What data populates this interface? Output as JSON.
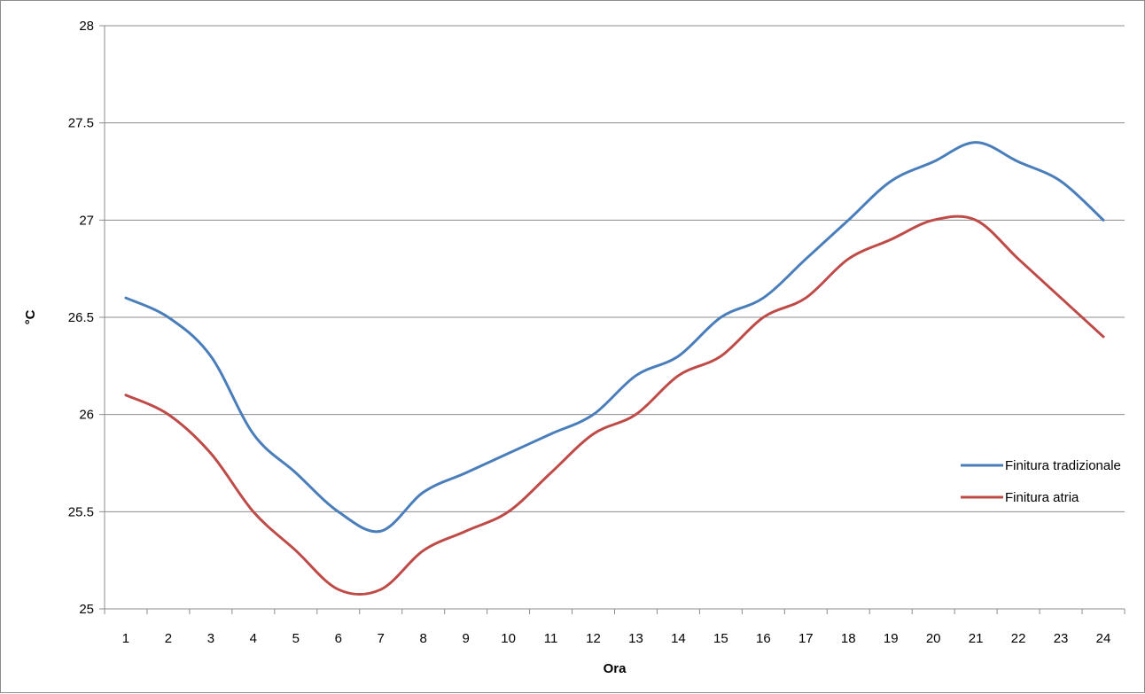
{
  "chart_data": {
    "type": "line",
    "title": "",
    "xlabel": "Ora",
    "ylabel": "°C",
    "x": [
      1,
      2,
      3,
      4,
      5,
      6,
      7,
      8,
      9,
      10,
      11,
      12,
      13,
      14,
      15,
      16,
      17,
      18,
      19,
      20,
      21,
      22,
      23,
      24
    ],
    "ylim": [
      25,
      28
    ],
    "yticks": [
      "25",
      "25.5",
      "26",
      "26.5",
      "27",
      "27.5",
      "28"
    ],
    "xticks": [
      "1",
      "2",
      "3",
      "4",
      "5",
      "6",
      "7",
      "8",
      "9",
      "10",
      "11",
      "12",
      "13",
      "14",
      "15",
      "16",
      "17",
      "18",
      "19",
      "20",
      "21",
      "22",
      "23",
      "24"
    ],
    "grid": true,
    "smooth": true,
    "legend_position": "right",
    "series": [
      {
        "name": "Finitura tradizionale",
        "color": "#4a7ebb",
        "values": [
          26.6,
          26.5,
          26.3,
          25.9,
          25.7,
          25.5,
          25.4,
          25.6,
          25.7,
          25.8,
          25.9,
          26.0,
          26.2,
          26.3,
          26.5,
          26.6,
          26.8,
          27.0,
          27.2,
          27.3,
          27.4,
          27.3,
          27.2,
          27.0
        ]
      },
      {
        "name": "Finitura atria",
        "color": "#be4b48",
        "values": [
          26.1,
          26.0,
          25.8,
          25.5,
          25.3,
          25.1,
          25.1,
          25.3,
          25.4,
          25.5,
          25.7,
          25.9,
          26.0,
          26.2,
          26.3,
          26.5,
          26.6,
          26.8,
          26.9,
          27.0,
          27.0,
          26.8,
          26.6,
          26.4
        ]
      }
    ]
  }
}
